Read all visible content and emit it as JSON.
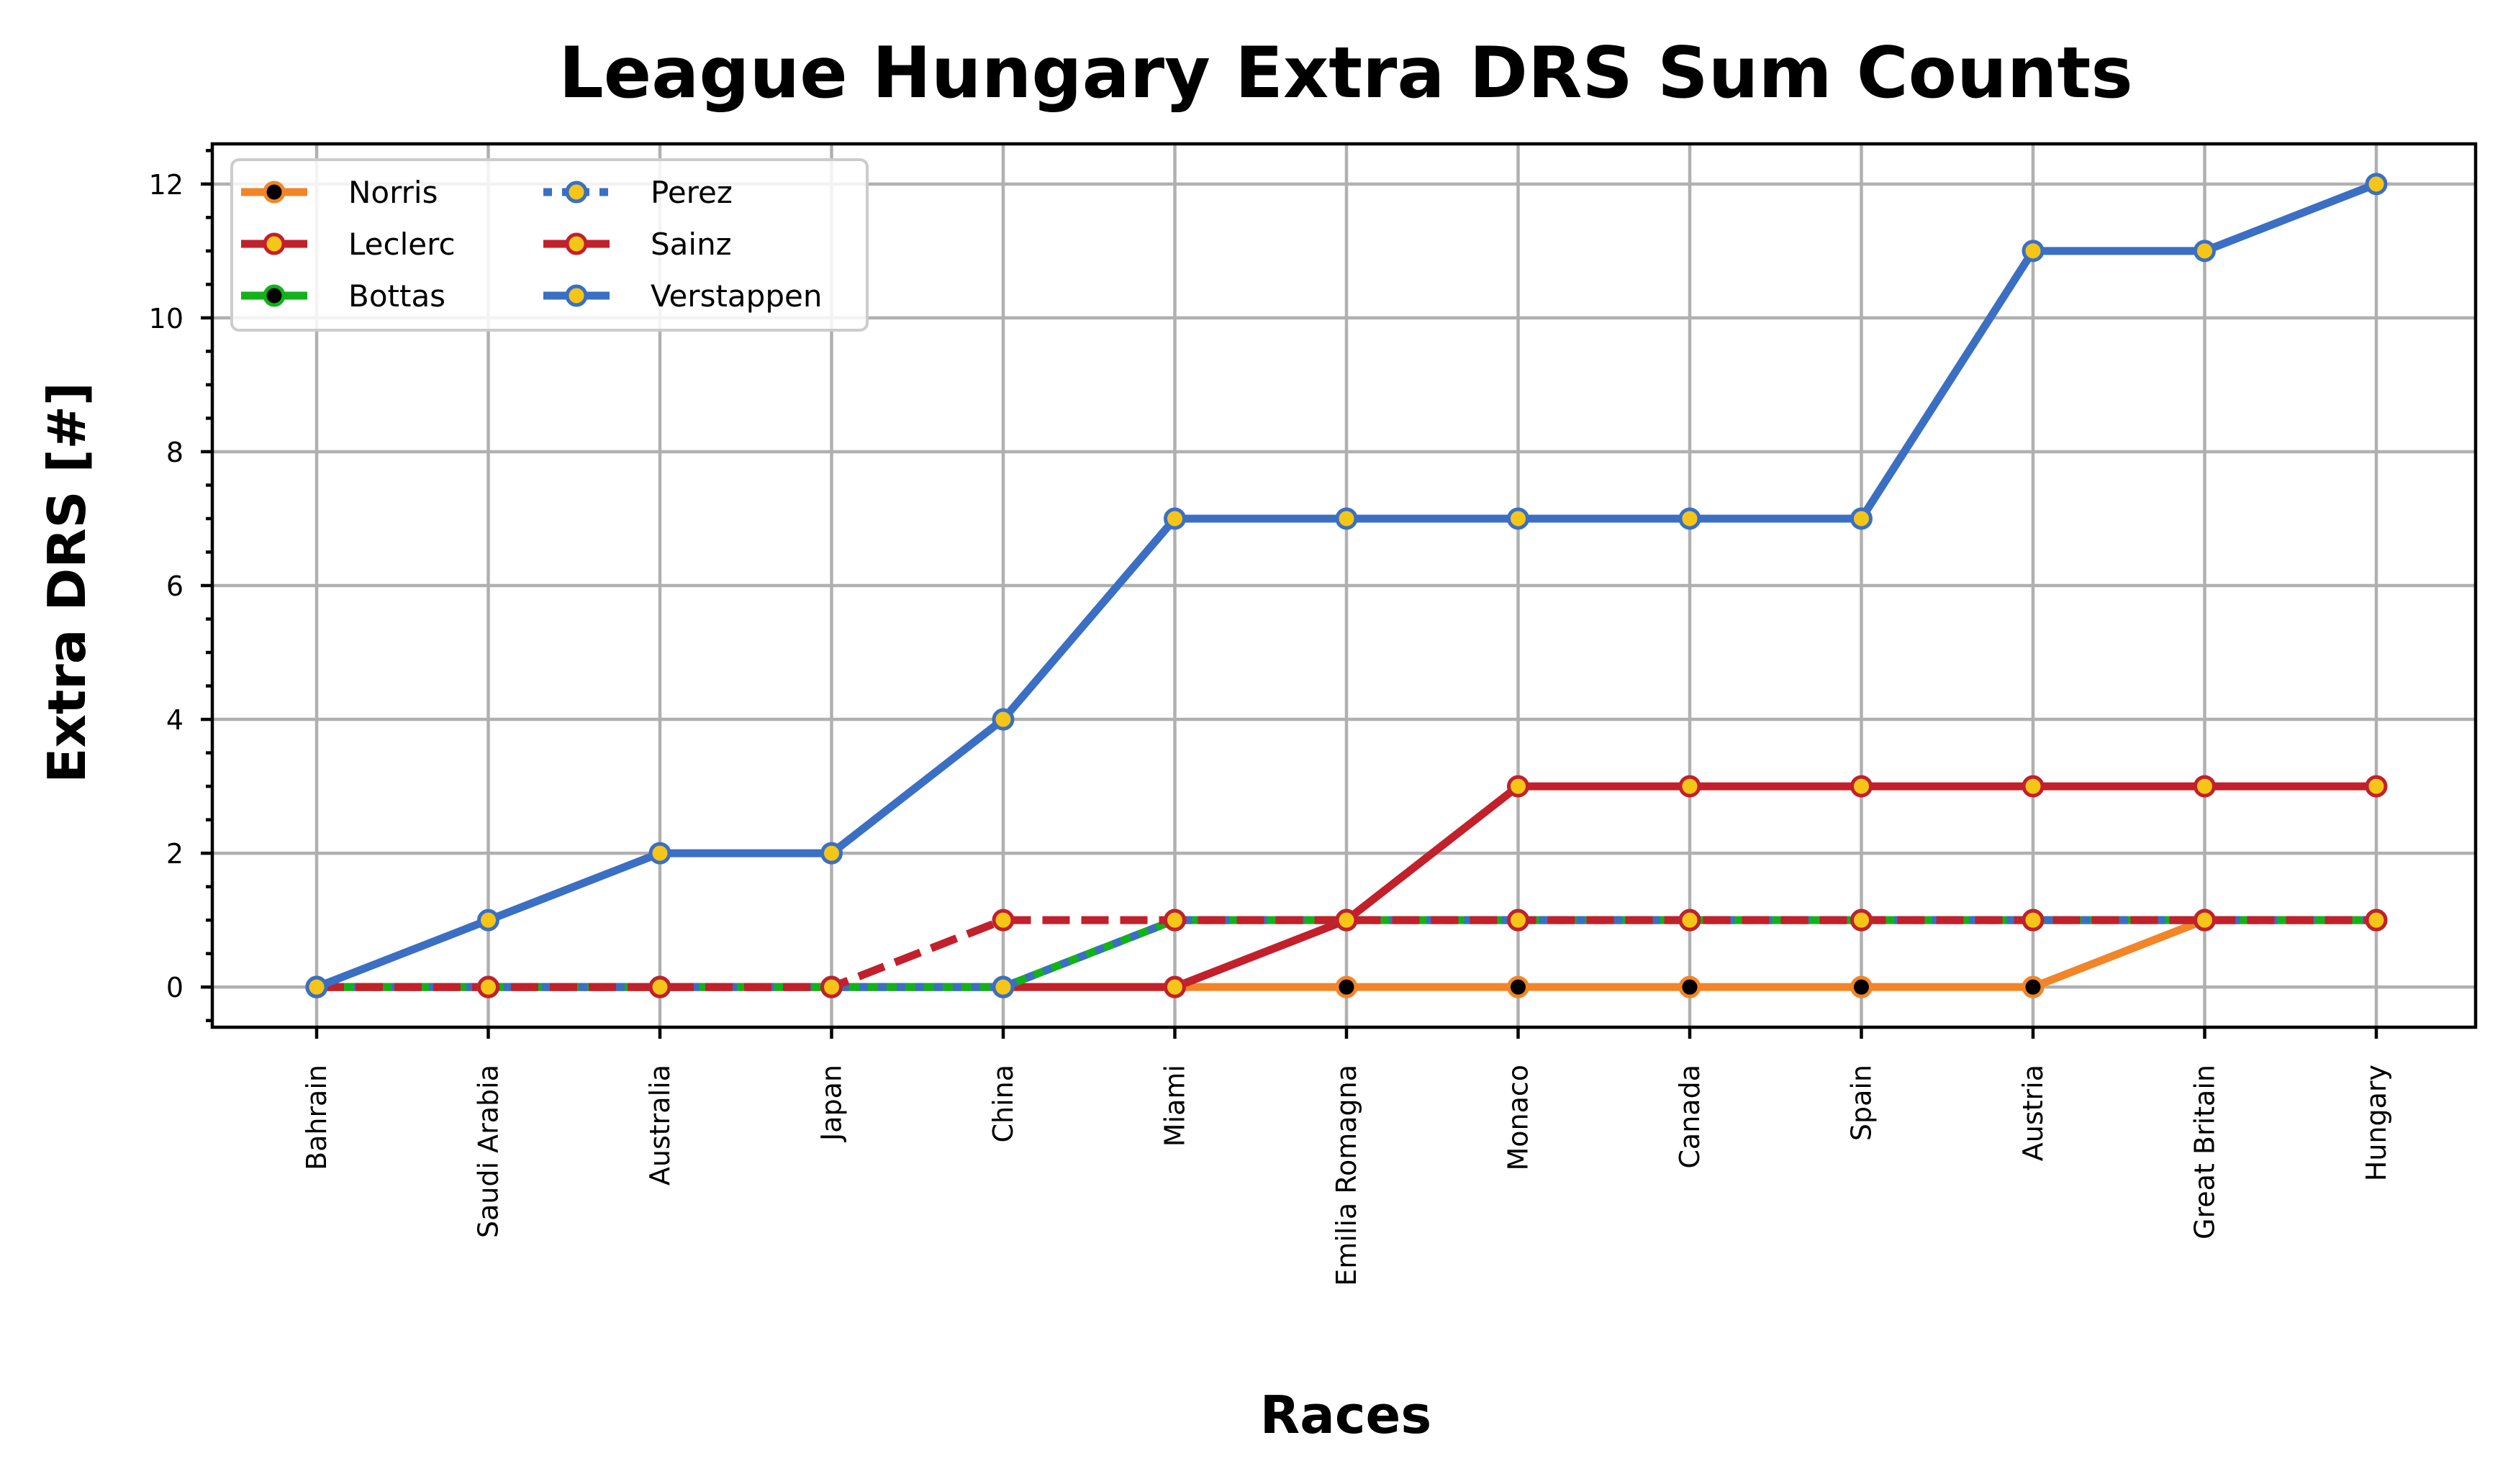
{
  "chart_data": {
    "type": "line",
    "title": "League Hungary Extra DRS Sum Counts",
    "xlabel": "Races",
    "ylabel": "Extra DRS [#]",
    "categories": [
      "Bahrain",
      "Saudi Arabia",
      "Australia",
      "Japan",
      "China",
      "Miami",
      "Emilia Romagna",
      "Monaco",
      "Canada",
      "Spain",
      "Austria",
      "Great Britain",
      "Hungary"
    ],
    "yticks": [
      0,
      2,
      4,
      6,
      8,
      10,
      12
    ],
    "ylim": [
      -0.6,
      12.6
    ],
    "grid": true,
    "legend_position": "top-left",
    "legend_columns": 2,
    "series": [
      {
        "name": "Norris",
        "color": "#f28527",
        "dash": "solid",
        "marker_face": "#000000",
        "marker_edge": "#f28527",
        "values": [
          0,
          0,
          0,
          0,
          0,
          0,
          0,
          0,
          0,
          0,
          0,
          1,
          1
        ]
      },
      {
        "name": "Leclerc",
        "color": "#c2202b",
        "dash": "solid",
        "marker_face": "#f5c518",
        "marker_edge": "#c2202b",
        "values": [
          0,
          0,
          0,
          0,
          0,
          0,
          1,
          3,
          3,
          3,
          3,
          3,
          3
        ]
      },
      {
        "name": "Bottas",
        "color": "#12b21a",
        "dash": "solid",
        "marker_face": "#000000",
        "marker_edge": "#12b21a",
        "values": [
          0,
          0,
          0,
          0,
          0,
          1,
          1,
          1,
          1,
          1,
          1,
          1,
          1
        ]
      },
      {
        "name": "Perez",
        "color": "#3a6fc4",
        "dash": "dotted",
        "marker_face": "#f5c518",
        "marker_edge": "#3a6fc4",
        "values": [
          0,
          0,
          0,
          0,
          0,
          1,
          1,
          1,
          1,
          1,
          1,
          1,
          1
        ]
      },
      {
        "name": "Sainz",
        "color": "#c2202b",
        "dash": "dashed",
        "marker_face": "#f5c518",
        "marker_edge": "#c2202b",
        "values": [
          0,
          0,
          0,
          0,
          1,
          1,
          1,
          1,
          1,
          1,
          1,
          1,
          1
        ]
      },
      {
        "name": "Verstappen",
        "color": "#3a6fc4",
        "dash": "solid",
        "marker_face": "#f5c518",
        "marker_edge": "#3a6fc4",
        "values": [
          0,
          1,
          2,
          2,
          4,
          7,
          7,
          7,
          7,
          7,
          11,
          11,
          12
        ]
      }
    ]
  }
}
